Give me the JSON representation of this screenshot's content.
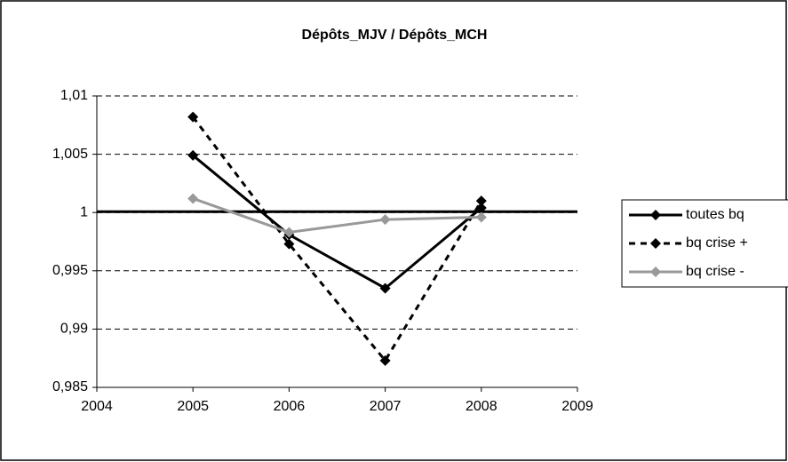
{
  "chart_data": {
    "type": "line",
    "title": "Dépôts_MJV / Dépôts_MCH",
    "x": [
      2005,
      2006,
      2007,
      2008
    ],
    "series": [
      {
        "name": "toutes bq",
        "color": "#000000",
        "dash": false,
        "values": [
          1.0049,
          0.9981,
          0.9935,
          1.0004
        ]
      },
      {
        "name": "bq crise +",
        "color": "#000000",
        "dash": true,
        "values": [
          1.0082,
          0.9973,
          0.9873,
          1.001
        ]
      },
      {
        "name": "bq crise -",
        "color": "#999999",
        "dash": false,
        "values": [
          1.0012,
          0.9983,
          0.9994,
          0.9996
        ]
      }
    ],
    "reference_line": 1,
    "xlim": [
      2004,
      2009
    ],
    "xticks": [
      2004,
      2005,
      2006,
      2007,
      2008,
      2009
    ],
    "ylim": [
      0.985,
      1.01
    ],
    "yticks": [
      {
        "value": 0.985,
        "label": "0,985"
      },
      {
        "value": 0.99,
        "label": "0,99"
      },
      {
        "value": 0.995,
        "label": "0,995"
      },
      1,
      {
        "value": 1.005,
        "label": "1,005"
      },
      {
        "value": 1.01,
        "label": "1,01"
      }
    ],
    "grid": true,
    "legend": "right"
  }
}
